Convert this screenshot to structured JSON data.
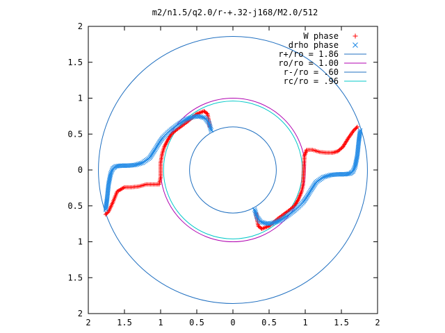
{
  "chart_data": {
    "type": "scatter",
    "title": "m2/n1.5/q2.0/r-+.32-j168/M2.0/512",
    "xlim": [
      -2,
      2
    ],
    "ylim": [
      -2,
      2
    ],
    "x_ticks": [
      -2,
      -1.5,
      -1,
      -0.5,
      0,
      0.5,
      1,
      1.5,
      2
    ],
    "y_ticks": [
      -2,
      -1.5,
      -1,
      -0.5,
      0,
      0.5,
      1,
      1.5,
      2
    ],
    "x_tick_labels": [
      "2",
      "1.5",
      "1",
      "0.5",
      "0",
      "0.5",
      "1",
      "1.5",
      "2"
    ],
    "y_tick_labels": [
      "2",
      "1.5",
      "1",
      "0.5",
      "0",
      "0.5",
      "1",
      "1.5",
      "2"
    ],
    "grid": false,
    "legend_position": "top-right",
    "legend": [
      {
        "label": "W phase",
        "kind": "points",
        "marker": "+",
        "color": "#ff0000"
      },
      {
        "label": "drho phase",
        "kind": "points",
        "marker": "x",
        "color": "#1e88e5"
      },
      {
        "label": "r+/ro = 1.86",
        "kind": "line",
        "color": "#1f6fc0",
        "radius": 1.86
      },
      {
        "label": "ro/ro = 1.00",
        "kind": "line",
        "color": "#b000b0",
        "radius": 1.0
      },
      {
        "label": "r-/ro = .60",
        "kind": "line",
        "color": "#1f6fc0",
        "radius": 0.6
      },
      {
        "label": "rc/ro = .96",
        "kind": "line",
        "color": "#00c8c8",
        "radius": 0.96
      }
    ],
    "series": [
      {
        "name": "W phase",
        "color": "#ff0000",
        "marker": "+",
        "x": [
          -1.76,
          -1.72,
          -1.66,
          -1.6,
          -1.5,
          -1.4,
          -1.3,
          -1.2,
          -1.1,
          -1.02,
          -1.0,
          -1.0,
          -0.98,
          -0.95,
          -0.9,
          -0.85,
          -0.78,
          -0.7,
          -0.62,
          -0.55,
          -0.5,
          -0.45,
          -0.4,
          -0.35,
          -0.32
        ],
        "y": [
          -0.62,
          -0.58,
          -0.45,
          -0.3,
          -0.24,
          -0.24,
          -0.23,
          -0.2,
          -0.2,
          -0.2,
          -0.1,
          0.1,
          0.22,
          0.32,
          0.42,
          0.5,
          0.56,
          0.62,
          0.68,
          0.74,
          0.78,
          0.8,
          0.82,
          0.78,
          0.6
        ]
      },
      {
        "name": "W phase",
        "color": "#ff0000",
        "marker": "+",
        "x": [
          1.72,
          1.67,
          1.6,
          1.52,
          1.45,
          1.38,
          1.3,
          1.2,
          1.1,
          1.02,
          0.99,
          0.98,
          0.97,
          0.95,
          0.9,
          0.85,
          0.78,
          0.7,
          0.62,
          0.55,
          0.5,
          0.45,
          0.4,
          0.35,
          0.32
        ],
        "y": [
          0.6,
          0.55,
          0.45,
          0.32,
          0.26,
          0.24,
          0.24,
          0.25,
          0.28,
          0.28,
          0.2,
          0.0,
          -0.2,
          -0.3,
          -0.42,
          -0.5,
          -0.56,
          -0.62,
          -0.68,
          -0.74,
          -0.78,
          -0.8,
          -0.82,
          -0.78,
          -0.6
        ]
      },
      {
        "name": "drho phase",
        "color": "#1e88e5",
        "marker": "x",
        "x": [
          -1.76,
          -1.74,
          -1.72,
          -1.69,
          -1.66,
          -1.62,
          -1.55,
          -1.45,
          -1.35,
          -1.25,
          -1.15,
          -1.08,
          -1.02,
          -0.97,
          -0.9,
          -0.83,
          -0.75,
          -0.66,
          -0.58,
          -0.5,
          -0.44,
          -0.38,
          -0.33,
          -0.3
        ],
        "y": [
          -0.55,
          -0.4,
          -0.2,
          -0.05,
          0.02,
          0.05,
          0.06,
          0.06,
          0.07,
          0.1,
          0.17,
          0.28,
          0.38,
          0.45,
          0.52,
          0.58,
          0.64,
          0.7,
          0.73,
          0.75,
          0.74,
          0.72,
          0.65,
          0.55
        ]
      },
      {
        "name": "drho phase",
        "color": "#1e88e5",
        "marker": "x",
        "x": [
          1.76,
          1.74,
          1.72,
          1.69,
          1.66,
          1.62,
          1.55,
          1.45,
          1.35,
          1.25,
          1.15,
          1.08,
          1.02,
          0.97,
          0.9,
          0.83,
          0.75,
          0.66,
          0.58,
          0.5,
          0.44,
          0.38,
          0.33,
          0.3
        ],
        "y": [
          0.55,
          0.4,
          0.2,
          0.05,
          -0.02,
          -0.05,
          -0.06,
          -0.06,
          -0.07,
          -0.1,
          -0.17,
          -0.28,
          -0.38,
          -0.45,
          -0.52,
          -0.58,
          -0.64,
          -0.7,
          -0.73,
          -0.75,
          -0.74,
          -0.72,
          -0.65,
          -0.55
        ]
      }
    ]
  }
}
